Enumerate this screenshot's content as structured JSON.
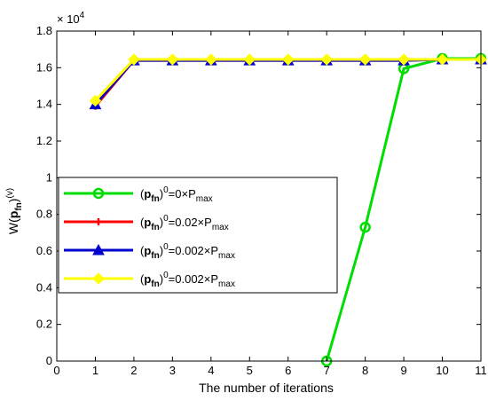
{
  "chart_data": {
    "type": "line",
    "xlabel": "The number of iterations",
    "ylabel": {
      "base": "W(",
      "bold": "p",
      "sub": "fn",
      "close": ")",
      "sup": "(v)"
    },
    "multiplier": {
      "base": "× 10",
      "exp": "4"
    },
    "x_ticks": [
      "0",
      "1",
      "2",
      "3",
      "4",
      "5",
      "6",
      "7",
      "8",
      "9",
      "10",
      "11"
    ],
    "y_ticks": [
      "0",
      "0.2",
      "0.4",
      "0.6",
      "0.8",
      "1",
      "1.2",
      "1.4",
      "1.6",
      "1.8"
    ],
    "xlim": [
      0,
      11
    ],
    "ylim": [
      0,
      1.8
    ],
    "grid": false,
    "legend_position": "center-left",
    "series": [
      {
        "name": "(pfn)0=0×Pmax",
        "legend": {
          "open": "(",
          "bold": "p",
          "sub": "fn",
          "close": ")",
          "sup": "0",
          "rest": "=0×P",
          "sub2": "max"
        },
        "color": "#00dd00",
        "marker": "circle",
        "x": [
          7,
          8,
          9,
          10,
          11
        ],
        "values": [
          0,
          0.73,
          1.595,
          1.65,
          1.65
        ]
      },
      {
        "name": "(pfn)0=0.02×Pmax",
        "legend": {
          "open": "(",
          "bold": "p",
          "sub": "fn",
          "close": ")",
          "sup": "0",
          "rest": "=0.02×P",
          "sub2": "max"
        },
        "color": "#ff0000",
        "marker": "plus",
        "x": [
          1,
          2,
          3,
          4,
          5,
          6,
          7,
          8,
          9,
          10,
          11
        ],
        "values": [
          1.39,
          1.64,
          1.64,
          1.64,
          1.64,
          1.64,
          1.64,
          1.64,
          1.64,
          1.645,
          1.645
        ]
      },
      {
        "name": "(pfn)0=0.002×Pmax",
        "legend": {
          "open": "(",
          "bold": "p",
          "sub": "fn",
          "close": ")",
          "sup": "0",
          "rest": "=0.002×P",
          "sub2": "max"
        },
        "color": "#0000cc",
        "marker": "triangle",
        "x": [
          1,
          2,
          3,
          4,
          5,
          6,
          7,
          8,
          9,
          10,
          11
        ],
        "values": [
          1.4,
          1.64,
          1.64,
          1.64,
          1.64,
          1.64,
          1.64,
          1.64,
          1.64,
          1.645,
          1.645
        ]
      },
      {
        "name": "(pfn)0=0.002×Pmax",
        "legend": {
          "open": "(",
          "bold": "p",
          "sub": "fn",
          "close": ")",
          "sup": "0",
          "rest": "=0.002×P",
          "sub2": "max"
        },
        "color": "#ffff00",
        "marker": "diamond",
        "x": [
          1,
          2,
          3,
          4,
          5,
          6,
          7,
          8,
          9,
          10,
          11
        ],
        "values": [
          1.42,
          1.645,
          1.645,
          1.645,
          1.645,
          1.645,
          1.645,
          1.645,
          1.645,
          1.645,
          1.645
        ]
      }
    ]
  }
}
